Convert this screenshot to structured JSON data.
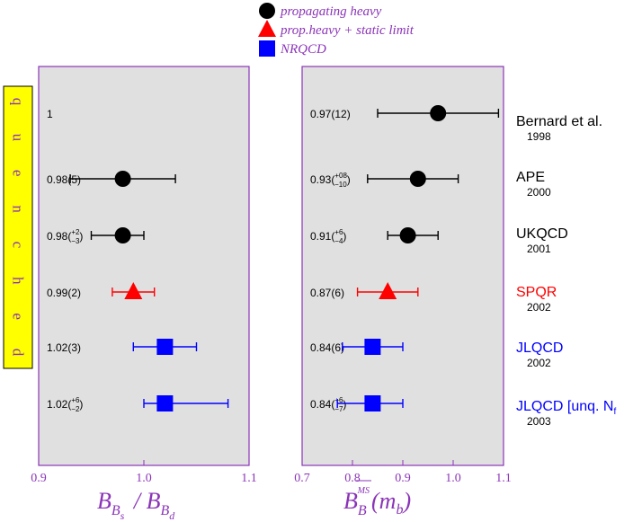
{
  "legend": {
    "entries": [
      {
        "label": "propagating heavy",
        "marker": "circle",
        "color": "#000000"
      },
      {
        "label": "prop.heavy + static limit",
        "marker": "triangle",
        "color": "#ff0000"
      },
      {
        "label": "NRQCD",
        "marker": "square",
        "color": "#0000ff"
      }
    ],
    "text_color": "#8b34b8"
  },
  "quenched_label": "quenched",
  "quenched_box_color": "#ffff00",
  "colors": {
    "panel_bg": "#e0e0e0",
    "panel_border": "#8b34b8",
    "axis_text": "#8b34b8"
  },
  "chart_data": [
    {
      "type": "scatter",
      "ylabel": "B_{B_s} / B_{B_d}",
      "xlim": [
        0.9,
        1.1
      ],
      "xticks": [
        "0.9",
        "1.0",
        "1.1"
      ],
      "rows": [
        {
          "label": "1",
          "value": null,
          "err_minus": null,
          "err_plus": null,
          "marker": "none",
          "color": "#000000"
        },
        {
          "label": "0.98(5)",
          "value": 0.98,
          "err_minus": 0.05,
          "err_plus": 0.05,
          "marker": "circle",
          "color": "#000000"
        },
        {
          "label": "0.98(+2 −3)",
          "label_main": "0.98(",
          "label_sup": "+2",
          "label_sub": "−3",
          "value": 0.98,
          "err_minus": 0.03,
          "err_plus": 0.02,
          "marker": "circle",
          "color": "#000000"
        },
        {
          "label": "0.99(2)",
          "value": 0.99,
          "err_minus": 0.02,
          "err_plus": 0.02,
          "marker": "triangle",
          "color": "#ff0000"
        },
        {
          "label": "1.02(3)",
          "value": 1.02,
          "err_minus": 0.03,
          "err_plus": 0.03,
          "marker": "square",
          "color": "#0000ff"
        },
        {
          "label": "1.02(+6 −2)",
          "label_main": "1.02(",
          "label_sup": "+6",
          "label_sub": "−2",
          "value": 1.02,
          "err_minus": 0.02,
          "err_plus": 0.06,
          "marker": "square",
          "color": "#0000ff"
        }
      ]
    },
    {
      "type": "scatter",
      "ylabel": "B_B^{MS}(m_b)",
      "xlim": [
        0.7,
        1.1
      ],
      "xticks": [
        "0.7",
        "0.8",
        "0.9",
        "1.0",
        "1.1"
      ],
      "rows": [
        {
          "label": "0.97(12)",
          "value": 0.97,
          "err_minus": 0.12,
          "err_plus": 0.12,
          "marker": "circle",
          "color": "#000000"
        },
        {
          "label": "0.93(+08 −10)",
          "label_main": "0.93(",
          "label_sup": "+08",
          "label_sub": "−10",
          "value": 0.93,
          "err_minus": 0.1,
          "err_plus": 0.08,
          "marker": "circle",
          "color": "#000000"
        },
        {
          "label": "0.91(+6 −4)",
          "label_main": "0.91(",
          "label_sup": "+6",
          "label_sub": "−4",
          "value": 0.91,
          "err_minus": 0.04,
          "err_plus": 0.06,
          "marker": "circle",
          "color": "#000000"
        },
        {
          "label": "0.87(6)",
          "value": 0.87,
          "err_minus": 0.06,
          "err_plus": 0.06,
          "marker": "triangle",
          "color": "#ff0000"
        },
        {
          "label": "0.84(6)",
          "value": 0.84,
          "err_minus": 0.06,
          "err_plus": 0.06,
          "marker": "square",
          "color": "#0000ff"
        },
        {
          "label": "0.84(+6 −7)",
          "label_main": "0.84(",
          "label_sup": "+6",
          "label_sub": "−7",
          "value": 0.84,
          "err_minus": 0.07,
          "err_plus": 0.06,
          "marker": "square",
          "color": "#0000ff"
        }
      ]
    }
  ],
  "collaborations": [
    {
      "name": "Bernard et al.",
      "year": "1998",
      "color": "#000000"
    },
    {
      "name": "APE",
      "year": "2000",
      "color": "#000000"
    },
    {
      "name": "UKQCD",
      "year": "2001",
      "color": "#000000"
    },
    {
      "name": "SPQR",
      "year": "2002",
      "color": "#ff0000"
    },
    {
      "name": "JLQCD",
      "year": "2002",
      "color": "#0000ff"
    },
    {
      "name": "JLQCD [unq. N",
      "name_sub": "f",
      "year": "2003",
      "color": "#0000ff"
    }
  ]
}
